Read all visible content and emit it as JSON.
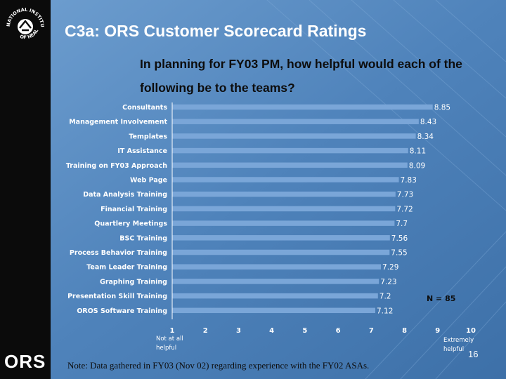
{
  "slide": {
    "title": "C3a:  ORS Customer Scorecard Ratings",
    "subtitle": "In planning for FY03 PM, how helpful would each of the following be to the teams?",
    "note": "Note:  Data gathered in FY03 (Nov 02)  regarding experience with the FY02 ASAs.",
    "page_number": "16",
    "logo_top_text": "NATIONAL INSTITUTES",
    "logo_bottom_text": "OF HEALTH",
    "ors_logo": "ORS"
  },
  "colors": {
    "background": "#4a7eb5",
    "sidebar": "#0b0b0b",
    "bar": "#7aa6d8"
  },
  "chart_data": {
    "type": "bar",
    "orientation": "horizontal",
    "categories": [
      "Consultants",
      "Management Involvement",
      "Templates",
      "IT Assistance",
      "Training on FY03 Approach",
      "Web Page",
      "Data Analysis Training",
      "Financial Training",
      "Quartlery Meetings",
      "BSC Training",
      "Process Behavior Training",
      "Team Leader Training",
      "Graphing Training",
      "Presentation Skill Training",
      "OROS Software Training"
    ],
    "values": [
      8.85,
      8.43,
      8.34,
      8.11,
      8.09,
      7.83,
      7.73,
      7.72,
      7.7,
      7.56,
      7.55,
      7.29,
      7.23,
      7.2,
      7.12
    ],
    "value_labels": [
      "8.85",
      "8.43",
      "8.34",
      "8.11",
      "8.09",
      "7.83",
      "7.73",
      "7.72",
      "7.7",
      "7.56",
      "7.55",
      "7.29",
      "7.23",
      "7.2",
      "7.12"
    ],
    "xlim": [
      1,
      10
    ],
    "xticks": [
      "1",
      "2",
      "3",
      "4",
      "5",
      "6",
      "7",
      "8",
      "9",
      "10"
    ],
    "xlabel_left": [
      "Not at all",
      "helpful"
    ],
    "xlabel_right": [
      "Extremely",
      "helpful"
    ],
    "annotation": "N = 85"
  }
}
